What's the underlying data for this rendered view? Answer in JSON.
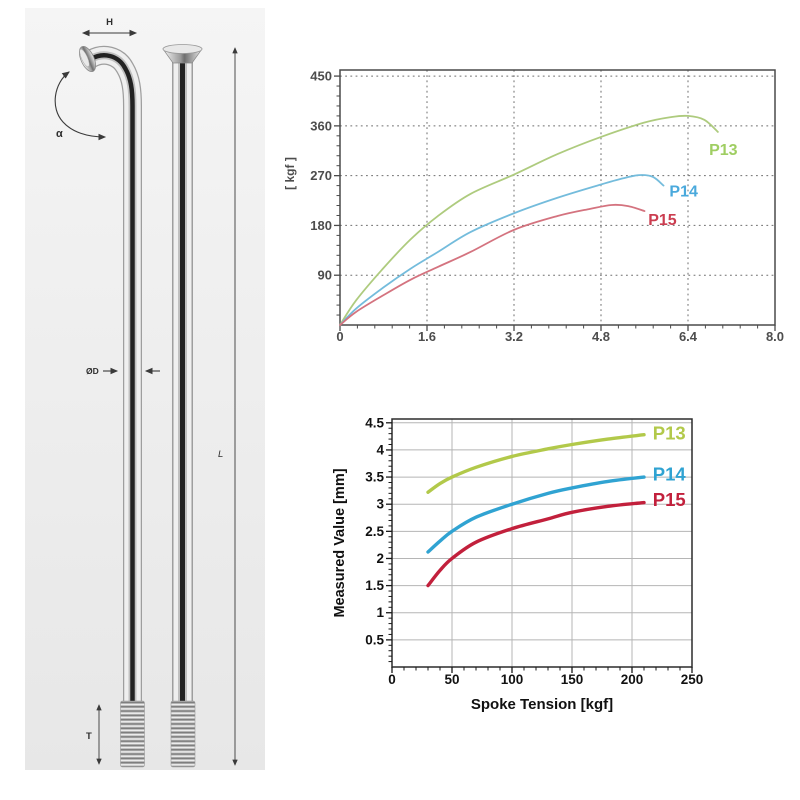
{
  "page": {
    "title": "Spoke dimension diagram with tension test charts"
  },
  "diagram": {
    "labels": {
      "head": "H",
      "angle": "α",
      "diameter": "ØD",
      "length": "L",
      "thread": "T"
    }
  },
  "chart_data": [
    {
      "id": "chart-top",
      "type": "line",
      "title": "",
      "xlabel": "",
      "ylabel": "[ kgf ]",
      "xlim": [
        0,
        8.0
      ],
      "ylim": [
        0,
        461
      ],
      "xticks": [
        "0",
        "1.6",
        "3.2",
        "4.8",
        "6.4",
        "8.0"
      ],
      "yticks": [
        "90",
        "180",
        "270",
        "360",
        "450"
      ],
      "xminor": 0.32,
      "yminor": 18,
      "grid": "dashed",
      "legend_position": "inline-right",
      "series": [
        {
          "name": "P13",
          "color": "#aecb7e",
          "label_color": "#9fce62",
          "label_xy": [
            7.05,
            318
          ],
          "points": [
            [
              0,
              0
            ],
            [
              0.3,
              45
            ],
            [
              0.8,
              103
            ],
            [
              1.3,
              155
            ],
            [
              1.8,
              197
            ],
            [
              2.4,
              237
            ],
            [
              3.2,
              272
            ],
            [
              4.0,
              309
            ],
            [
              4.8,
              340
            ],
            [
              5.6,
              366
            ],
            [
              6.1,
              376
            ],
            [
              6.4,
              378
            ],
            [
              6.7,
              371
            ],
            [
              6.95,
              349
            ]
          ]
        },
        {
          "name": "P14",
          "color": "#74bcdc",
          "label_color": "#4aa9dc",
          "label_xy": [
            6.32,
            243
          ],
          "points": [
            [
              0,
              0
            ],
            [
              0.3,
              30
            ],
            [
              0.8,
              68
            ],
            [
              1.3,
              102
            ],
            [
              1.8,
              132
            ],
            [
              2.4,
              168
            ],
            [
              3.2,
              202
            ],
            [
              4.0,
              230
            ],
            [
              4.8,
              254
            ],
            [
              5.2,
              265
            ],
            [
              5.5,
              271
            ],
            [
              5.75,
              268
            ],
            [
              5.95,
              252
            ]
          ]
        },
        {
          "name": "P15",
          "color": "#d4737f",
          "label_color": "#cb3d50",
          "label_xy": [
            5.93,
            192
          ],
          "points": [
            [
              0,
              0
            ],
            [
              0.3,
              24
            ],
            [
              0.8,
              54
            ],
            [
              1.3,
              82
            ],
            [
              1.8,
              105
            ],
            [
              2.4,
              132
            ],
            [
              3.2,
              172
            ],
            [
              4.0,
              197
            ],
            [
              4.6,
              210
            ],
            [
              5.0,
              217
            ],
            [
              5.3,
              215
            ],
            [
              5.6,
              206
            ]
          ]
        }
      ]
    },
    {
      "id": "chart-bottom",
      "type": "line",
      "title": "",
      "xlabel": "Spoke Tension [kgf]",
      "ylabel": "Measured Value [mm]",
      "xlim": [
        0,
        250
      ],
      "ylim": [
        0,
        4.57
      ],
      "xticks": [
        "0",
        "50",
        "100",
        "150",
        "200",
        "250"
      ],
      "yticks": [
        "0.5",
        "1",
        "1.5",
        "2",
        "2.5",
        "3",
        "3.5",
        "4",
        "4.5"
      ],
      "xminor": 10,
      "yminor": 0.1,
      "grid": "solid",
      "legend_position": "inline-right",
      "series": [
        {
          "name": "P13",
          "color": "#b2c94a",
          "label_color": "#b2c94a",
          "label_xy": [
            231,
            4.3
          ],
          "points": [
            [
              30,
              3.22
            ],
            [
              40,
              3.38
            ],
            [
              50,
              3.5
            ],
            [
              70,
              3.68
            ],
            [
              100,
              3.88
            ],
            [
              130,
              4.02
            ],
            [
              150,
              4.1
            ],
            [
              180,
              4.2
            ],
            [
              210,
              4.28
            ]
          ]
        },
        {
          "name": "P14",
          "color": "#30a3d2",
          "label_color": "#30a3d2",
          "label_xy": [
            231,
            3.55
          ],
          "points": [
            [
              30,
              2.12
            ],
            [
              40,
              2.32
            ],
            [
              50,
              2.5
            ],
            [
              70,
              2.76
            ],
            [
              100,
              3.0
            ],
            [
              130,
              3.2
            ],
            [
              150,
              3.3
            ],
            [
              180,
              3.42
            ],
            [
              210,
              3.5
            ]
          ]
        },
        {
          "name": "P15",
          "color": "#c2203c",
          "label_color": "#c2203c",
          "label_xy": [
            231,
            3.08
          ],
          "points": [
            [
              30,
              1.5
            ],
            [
              40,
              1.78
            ],
            [
              50,
              2.0
            ],
            [
              70,
              2.3
            ],
            [
              100,
              2.55
            ],
            [
              130,
              2.73
            ],
            [
              150,
              2.85
            ],
            [
              180,
              2.96
            ],
            [
              210,
              3.03
            ]
          ]
        }
      ]
    }
  ]
}
